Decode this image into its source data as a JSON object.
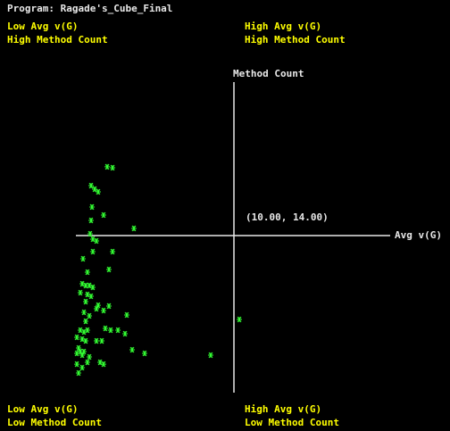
{
  "chart_data": {
    "type": "scatter",
    "title": "Program: Ragade's_Cube_Final",
    "x_label": "Avg v(G)",
    "y_label": "Method Count",
    "annotation": "(10.00, 14.00)",
    "center": [
      10,
      14
    ],
    "quadrant_labels": {
      "top_left": [
        "Low Avg v(G)",
        "High Method Count"
      ],
      "top_right": [
        "High Avg v(G)",
        "High Method Count"
      ],
      "bottom_left": [
        "Low Avg v(G)",
        "Low Method Count"
      ],
      "bottom_right": [
        "High Avg v(G)",
        "Low Method Count"
      ]
    },
    "color": "#33ff33",
    "xlim": [
      0,
      20
    ],
    "ylim": [
      0,
      28
    ],
    "x": [
      1.98,
      2.32,
      0.96,
      1.19,
      1.41,
      1.02,
      1.75,
      0.96,
      3.67,
      0.9,
      1.07,
      1.3,
      2.32,
      1.07,
      0.45,
      2.09,
      0.73,
      0.4,
      0.62,
      0.85,
      1.07,
      0.28,
      0.73,
      0.96,
      0.62,
      1.41,
      2.09,
      1.3,
      1.75,
      0.51,
      0.85,
      3.22,
      0.62,
      10.34,
      0.28,
      0.51,
      0.73,
      1.86,
      2.2,
      2.66,
      3.11,
      0.06,
      0.4,
      0.62,
      1.3,
      1.64,
      0.17,
      0.28,
      0.51,
      3.56,
      4.35,
      0.06,
      0.4,
      0.85,
      8.53,
      0.73,
      1.53,
      0.06,
      1.75,
      0.4,
      0.17
    ],
    "values": [
      20.13,
      20.05,
      18.45,
      18.14,
      17.9,
      16.55,
      15.83,
      15.35,
      14.64,
      14.16,
      13.68,
      13.52,
      12.57,
      12.57,
      11.93,
      10.98,
      10.74,
      9.7,
      9.55,
      9.55,
      9.39,
      8.91,
      8.75,
      8.59,
      8.11,
      7.79,
      7.72,
      7.48,
      7.32,
      7.16,
      6.84,
      6.92,
      6.36,
      6.52,
      5.57,
      5.41,
      5.57,
      5.73,
      5.57,
      5.57,
      5.25,
      4.93,
      4.77,
      4.61,
      4.61,
      4.61,
      3.98,
      3.66,
      3.66,
      3.82,
      3.5,
      3.5,
      3.34,
      3.18,
      3.34,
      2.7,
      2.7,
      2.54,
      2.54,
      2.23,
      1.75
    ]
  }
}
